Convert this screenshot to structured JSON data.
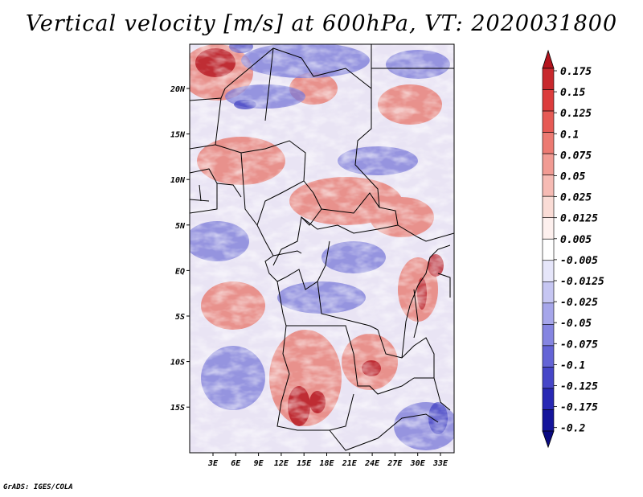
{
  "title": "Vertical velocity [m/s] at 600hPa, VT: 2020031800",
  "credit": "GrADS: IGES/COLA",
  "map": {
    "lon_labels": [
      "3E",
      "6E",
      "9E",
      "12E",
      "15E",
      "18E",
      "21E",
      "24E",
      "27E",
      "30E",
      "33E"
    ],
    "lat_labels": [
      "20N",
      "15N",
      "10N",
      "5N",
      "EQ",
      "5S",
      "10S",
      "15S"
    ],
    "lat_range": [
      -19,
      25
    ],
    "lon_range": [
      1,
      35
    ]
  },
  "colorbar": {
    "labels": [
      "0.175",
      "0.15",
      "0.125",
      "0.1",
      "0.075",
      "0.05",
      "0.025",
      "0.0125",
      "0.005",
      "-0.005",
      "-0.0125",
      "-0.025",
      "-0.05",
      "-0.075",
      "-0.1",
      "-0.125",
      "-0.175",
      "-0.2"
    ],
    "colors": [
      "#b4141e",
      "#c8282d",
      "#dc3c3c",
      "#e65a55",
      "#ec7a72",
      "#f19b93",
      "#f6bbb4",
      "#fadcd6",
      "#fdf0ee",
      "#ffffff",
      "#e6e6fa",
      "#c6c6f2",
      "#a6a6ea",
      "#8585e1",
      "#6464d6",
      "#4646c8",
      "#2828b4",
      "#14149b",
      "#0a0a82"
    ]
  },
  "colors": {
    "top_arrow": "#b4141e",
    "bottom_arrow": "#0a0a82"
  }
}
